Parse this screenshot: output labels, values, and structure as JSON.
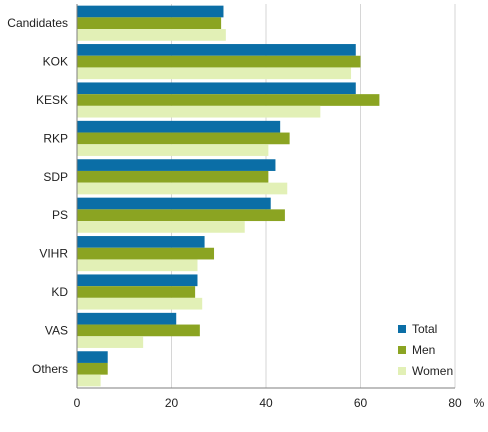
{
  "chart_data": {
    "type": "bar",
    "orientation": "horizontal",
    "categories": [
      "Candidates",
      "KOK",
      "KESK",
      "RKP",
      "SDP",
      "PS",
      "VIHR",
      "KD",
      "VAS",
      "Others"
    ],
    "series": [
      {
        "name": "Total",
        "values": [
          31,
          59,
          59,
          43,
          42,
          41,
          27,
          25.5,
          21,
          6.5
        ]
      },
      {
        "name": "Men",
        "values": [
          30.5,
          60,
          64,
          45,
          40.5,
          44,
          29,
          25,
          26,
          6.5
        ]
      },
      {
        "name": "Women",
        "values": [
          31.5,
          58,
          51.5,
          40.5,
          44.5,
          35.5,
          25.5,
          26.5,
          14,
          5
        ]
      }
    ],
    "x_ticks": [
      "0",
      "20",
      "40",
      "60",
      "80"
    ],
    "xlim": [
      0,
      80
    ],
    "unit_label": "%",
    "grid": "vertical",
    "legend_position": "bottom-right",
    "colors": {
      "Total": "#0b6ea6",
      "Men": "#8ba422",
      "Women": "#e2f0b6",
      "grid": "#d6d6d6",
      "axis": "#7f7f7f"
    }
  }
}
